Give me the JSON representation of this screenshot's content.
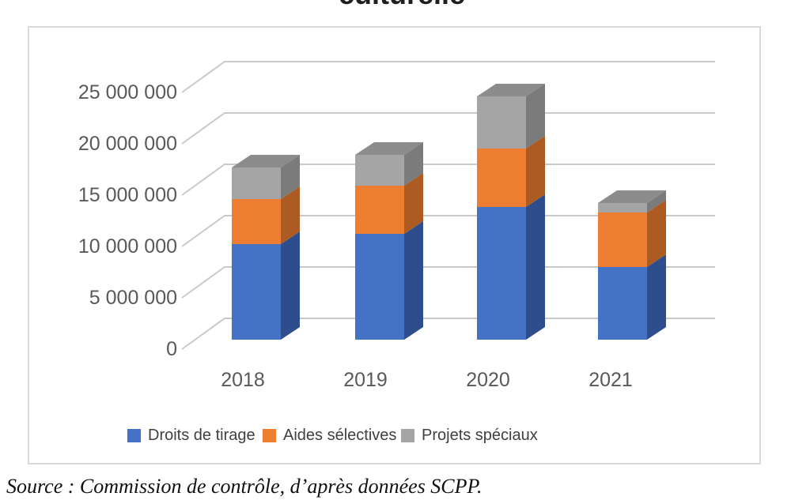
{
  "page": {
    "clipped_title_text": "culturelle",
    "source_note": "Source : Commission de contrôle, d’après données SCPP."
  },
  "chart_data": {
    "type": "bar",
    "stacked": true,
    "style": "3d",
    "title": "",
    "xlabel": "",
    "ylabel": "",
    "categories": [
      "2018",
      "2019",
      "2020",
      "2021"
    ],
    "series": [
      {
        "name": "Droits de tirage",
        "color": "#4472C4",
        "side_color": "#2E4D8C",
        "values": [
          9300000,
          10300000,
          12900000,
          7100000
        ]
      },
      {
        "name": "Aides sélectives",
        "color": "#ED7D31",
        "side_color": "#AC5B22",
        "values": [
          4400000,
          4700000,
          5700000,
          5300000
        ]
      },
      {
        "name": "Projets spéciaux",
        "color": "#A5A5A5",
        "side_color": "#7B7B7B",
        "values": [
          3100000,
          3000000,
          5100000,
          900000
        ]
      }
    ],
    "top_face_color": "#8C8C8C",
    "ylim": [
      0,
      25000000
    ],
    "ytick_step": 5000000,
    "ytick_labels": [
      "0",
      "5 000 000",
      "10 000 000",
      "15 000 000",
      "20 000 000",
      "25 000 000"
    ],
    "grid": true,
    "gridline_color": "#C9C9C9",
    "legend_position": "bottom",
    "axis_text_color": "#595959"
  }
}
